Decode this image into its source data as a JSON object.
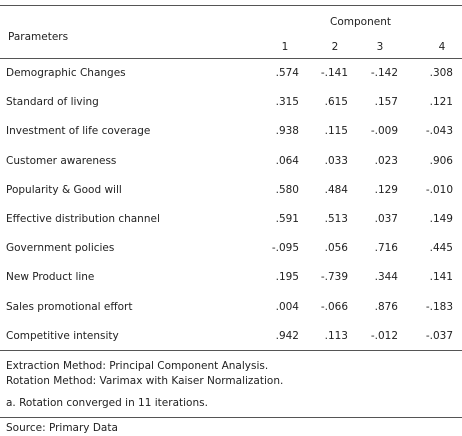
{
  "table": {
    "header": {
      "parameters": "Parameters",
      "component": "Component",
      "columns": [
        "1",
        "2",
        "3",
        "4"
      ]
    },
    "rows": [
      [
        "Demographic Changes",
        ".574",
        "-.141",
        "-.142",
        ".308"
      ],
      [
        "Standard of living",
        ".315",
        ".615",
        ".157",
        ".121"
      ],
      [
        "Investment of life coverage",
        ".938",
        ".115",
        "-.009",
        "-.043"
      ],
      [
        "Customer awareness",
        ".064",
        ".033",
        ".023",
        ".906"
      ],
      [
        "Popularity & Good will",
        ".580",
        ".484",
        ".129",
        "-.010"
      ],
      [
        "Effective distribution channel",
        ".591",
        ".513",
        ".037",
        ".149"
      ],
      [
        "Government policies",
        "-.095",
        ".056",
        ".716",
        ".445"
      ],
      [
        "New Product line",
        ".195",
        "-.739",
        ".344",
        ".141"
      ],
      [
        "Sales promotional effort",
        ".004",
        "-.066",
        ".876",
        "-.183"
      ],
      [
        "Competitive intensity",
        ".942",
        ".113",
        "-.012",
        "-.037"
      ]
    ]
  },
  "notes": [
    "Extraction Method: Principal Component Analysis.",
    "Rotation Method: Varimax with Kaiser Normalization.",
    "a. Rotation converged in 11 iterations."
  ],
  "source": "Source: Primary Data"
}
